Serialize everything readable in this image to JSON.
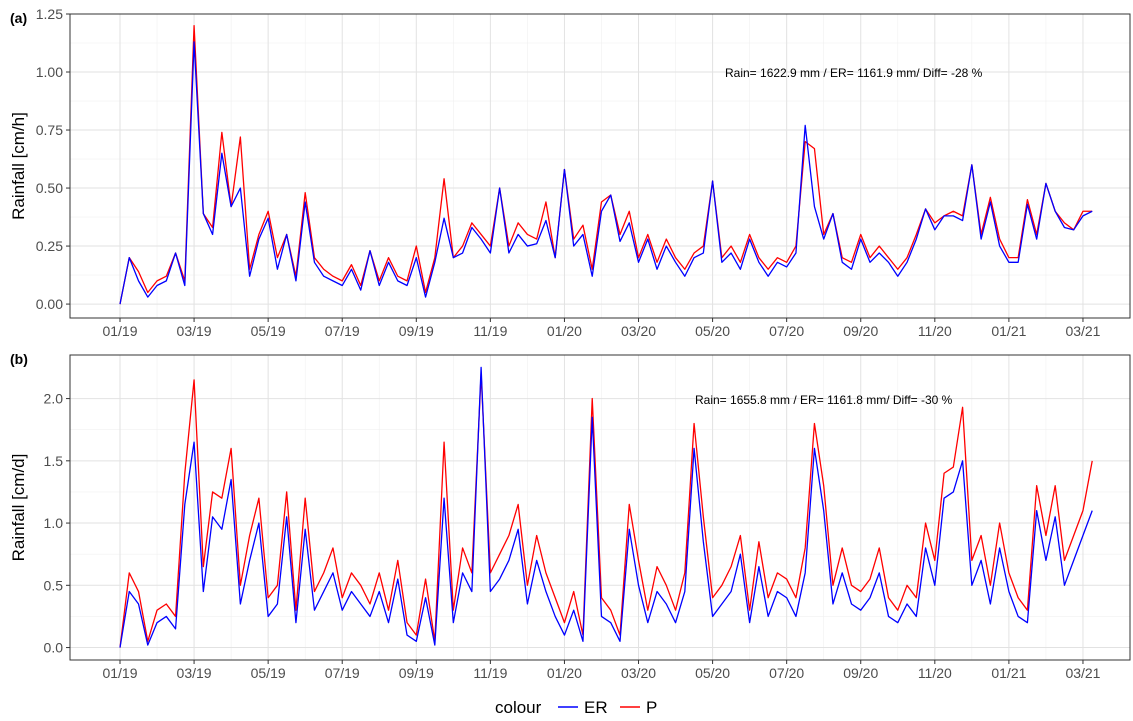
{
  "chart_data": [
    {
      "type": "line",
      "label": "(a)",
      "ylabel": "Rainfall [cm/h]",
      "annotation": "Rain= 1622.9 mm / ER= 1161.9 mm/ Diff= -28 %",
      "x": [
        0,
        0.25,
        0.5,
        0.75,
        1,
        1.25,
        1.5,
        1.75,
        2,
        2.25,
        2.5,
        2.75,
        3,
        3.25,
        3.5,
        3.75,
        4,
        4.25,
        4.5,
        4.75,
        5,
        5.25,
        5.5,
        5.75,
        6,
        6.25,
        6.5,
        6.75,
        7,
        7.25,
        7.5,
        7.75,
        8,
        8.25,
        8.5,
        8.75,
        9,
        9.25,
        9.5,
        9.75,
        10,
        10.25,
        10.5,
        10.75,
        11,
        11.25,
        11.5,
        11.75,
        12,
        12.25,
        12.5,
        12.75,
        13,
        13.25,
        13.5,
        13.75,
        14,
        14.25,
        14.5,
        14.75,
        15,
        15.25,
        15.5,
        15.75,
        16,
        16.25,
        16.5,
        16.75,
        17,
        17.25,
        17.5,
        17.75,
        18,
        18.25,
        18.5,
        18.75,
        19,
        19.25,
        19.5,
        19.75,
        20,
        20.25,
        20.5,
        20.75,
        21,
        21.25,
        21.5,
        21.75,
        22,
        22.25,
        22.5,
        22.75,
        23,
        23.25,
        23.5,
        23.75,
        24,
        24.25,
        24.5,
        24.75,
        25,
        25.25,
        25.5,
        25.75,
        26,
        26.25
      ],
      "series": [
        {
          "name": "ER",
          "color": "#0000ff",
          "values": [
            0,
            0.2,
            0.1,
            0.03,
            0.08,
            0.1,
            0.22,
            0.08,
            1.13,
            0.39,
            0.3,
            0.65,
            0.42,
            0.5,
            0.12,
            0.28,
            0.37,
            0.15,
            0.3,
            0.1,
            0.44,
            0.18,
            0.12,
            0.1,
            0.08,
            0.15,
            0.06,
            0.23,
            0.08,
            0.18,
            0.1,
            0.08,
            0.2,
            0.03,
            0.18,
            0.37,
            0.2,
            0.22,
            0.33,
            0.28,
            0.22,
            0.5,
            0.22,
            0.3,
            0.25,
            0.26,
            0.36,
            0.2,
            0.58,
            0.25,
            0.3,
            0.12,
            0.4,
            0.47,
            0.27,
            0.35,
            0.18,
            0.28,
            0.15,
            0.25,
            0.18,
            0.12,
            0.2,
            0.22,
            0.53,
            0.18,
            0.22,
            0.15,
            0.28,
            0.18,
            0.12,
            0.18,
            0.16,
            0.22,
            0.77,
            0.42,
            0.28,
            0.39,
            0.18,
            0.15,
            0.28,
            0.18,
            0.22,
            0.18,
            0.12,
            0.18,
            0.28,
            0.41,
            0.32,
            0.38,
            0.38,
            0.36,
            0.6,
            0.28,
            0.44,
            0.25,
            0.18,
            0.18,
            0.43,
            0.28,
            0.52,
            0.4,
            0.33,
            0.32,
            0.38,
            0.4
          ]
        },
        {
          "name": "P",
          "color": "#ff0000",
          "values": [
            0,
            0.2,
            0.14,
            0.05,
            0.1,
            0.12,
            0.22,
            0.1,
            1.2,
            0.39,
            0.33,
            0.74,
            0.42,
            0.72,
            0.15,
            0.3,
            0.4,
            0.2,
            0.3,
            0.12,
            0.48,
            0.2,
            0.15,
            0.12,
            0.1,
            0.17,
            0.08,
            0.23,
            0.1,
            0.2,
            0.12,
            0.1,
            0.25,
            0.05,
            0.2,
            0.54,
            0.2,
            0.25,
            0.35,
            0.3,
            0.25,
            0.5,
            0.25,
            0.35,
            0.3,
            0.28,
            0.44,
            0.2,
            0.58,
            0.28,
            0.34,
            0.15,
            0.44,
            0.47,
            0.3,
            0.4,
            0.2,
            0.3,
            0.18,
            0.28,
            0.2,
            0.15,
            0.22,
            0.25,
            0.53,
            0.2,
            0.25,
            0.18,
            0.3,
            0.2,
            0.15,
            0.2,
            0.18,
            0.25,
            0.7,
            0.67,
            0.3,
            0.39,
            0.2,
            0.18,
            0.3,
            0.2,
            0.25,
            0.2,
            0.15,
            0.2,
            0.3,
            0.41,
            0.35,
            0.38,
            0.4,
            0.38,
            0.6,
            0.3,
            0.46,
            0.28,
            0.2,
            0.2,
            0.45,
            0.3,
            0.52,
            0.4,
            0.35,
            0.32,
            0.4,
            0.4
          ]
        }
      ],
      "xlim": [
        -1.35,
        27.27
      ],
      "xticks": [
        {
          "value": 0,
          "label": "01/19"
        },
        {
          "value": 2,
          "label": "03/19"
        },
        {
          "value": 4,
          "label": "05/19"
        },
        {
          "value": 6,
          "label": "07/19"
        },
        {
          "value": 8,
          "label": "09/19"
        },
        {
          "value": 10,
          "label": "11/19"
        },
        {
          "value": 12,
          "label": "01/20"
        },
        {
          "value": 14,
          "label": "03/20"
        },
        {
          "value": 16,
          "label": "05/20"
        },
        {
          "value": 18,
          "label": "07/20"
        },
        {
          "value": 20,
          "label": "09/20"
        },
        {
          "value": 22,
          "label": "11/20"
        },
        {
          "value": 24,
          "label": "01/21"
        },
        {
          "value": 26,
          "label": "03/21"
        }
      ],
      "ylim": [
        -0.06,
        1.25
      ],
      "yticks": [
        {
          "value": 0,
          "label": "0.00"
        },
        0.25,
        {
          "value": 0.5,
          "label": "0.50"
        },
        0.75,
        {
          "value": 1,
          "label": "1.00"
        },
        1.25
      ],
      "grid": true
    },
    {
      "type": "line",
      "label": "(b)",
      "ylabel": "Rainfall [cm/d]",
      "annotation": "Rain= 1655.8 mm / ER= 1161.8 mm/ Diff= -30 %",
      "legend_title": "colour",
      "legend": "bottom",
      "x": [
        0,
        0.25,
        0.5,
        0.75,
        1,
        1.25,
        1.5,
        1.75,
        2,
        2.25,
        2.5,
        2.75,
        3,
        3.25,
        3.5,
        3.75,
        4,
        4.25,
        4.5,
        4.75,
        5,
        5.25,
        5.5,
        5.75,
        6,
        6.25,
        6.5,
        6.75,
        7,
        7.25,
        7.5,
        7.75,
        8,
        8.25,
        8.5,
        8.75,
        9,
        9.25,
        9.5,
        9.75,
        10,
        10.25,
        10.5,
        10.75,
        11,
        11.25,
        11.5,
        11.75,
        12,
        12.25,
        12.5,
        12.75,
        13,
        13.25,
        13.5,
        13.75,
        14,
        14.25,
        14.5,
        14.75,
        15,
        15.25,
        15.5,
        15.75,
        16,
        16.25,
        16.5,
        16.75,
        17,
        17.25,
        17.5,
        17.75,
        18,
        18.25,
        18.5,
        18.75,
        19,
        19.25,
        19.5,
        19.75,
        20,
        20.25,
        20.5,
        20.75,
        21,
        21.25,
        21.5,
        21.75,
        22,
        22.25,
        22.5,
        22.75,
        23,
        23.25,
        23.5,
        23.75,
        24,
        24.25,
        24.5,
        24.75,
        25,
        25.25,
        25.5,
        25.75,
        26,
        26.25
      ],
      "series": [
        {
          "name": "ER",
          "color": "#0000ff",
          "values": [
            0,
            0.45,
            0.35,
            0.02,
            0.2,
            0.25,
            0.15,
            1.15,
            1.65,
            0.45,
            1.05,
            0.95,
            1.35,
            0.35,
            0.7,
            1.0,
            0.25,
            0.35,
            1.05,
            0.2,
            0.95,
            0.3,
            0.45,
            0.6,
            0.3,
            0.45,
            0.35,
            0.25,
            0.45,
            0.2,
            0.55,
            0.1,
            0.05,
            0.4,
            0.02,
            1.2,
            0.2,
            0.6,
            0.45,
            2.25,
            0.45,
            0.55,
            0.7,
            0.95,
            0.35,
            0.7,
            0.45,
            0.25,
            0.1,
            0.3,
            0.05,
            1.85,
            0.25,
            0.2,
            0.05,
            0.95,
            0.5,
            0.2,
            0.45,
            0.35,
            0.2,
            0.45,
            1.6,
            0.85,
            0.25,
            0.35,
            0.45,
            0.75,
            0.2,
            0.65,
            0.25,
            0.45,
            0.4,
            0.25,
            0.6,
            1.6,
            1.1,
            0.35,
            0.6,
            0.35,
            0.3,
            0.4,
            0.6,
            0.25,
            0.2,
            0.35,
            0.25,
            0.8,
            0.5,
            1.2,
            1.25,
            1.5,
            0.5,
            0.7,
            0.35,
            0.8,
            0.45,
            0.25,
            0.2,
            1.1,
            0.7,
            1.05,
            0.5,
            0.7,
            0.9,
            1.1
          ]
        },
        {
          "name": "P",
          "color": "#ff0000",
          "values": [
            0,
            0.6,
            0.45,
            0.05,
            0.3,
            0.35,
            0.25,
            1.4,
            2.15,
            0.65,
            1.25,
            1.2,
            1.6,
            0.5,
            0.9,
            1.2,
            0.4,
            0.5,
            1.25,
            0.3,
            1.2,
            0.45,
            0.6,
            0.8,
            0.4,
            0.6,
            0.5,
            0.35,
            0.6,
            0.3,
            0.7,
            0.2,
            0.1,
            0.55,
            0.05,
            1.65,
            0.3,
            0.8,
            0.6,
            2.2,
            0.6,
            0.75,
            0.9,
            1.15,
            0.5,
            0.9,
            0.6,
            0.4,
            0.2,
            0.45,
            0.1,
            2.0,
            0.4,
            0.3,
            0.1,
            1.15,
            0.7,
            0.3,
            0.65,
            0.5,
            0.3,
            0.6,
            1.8,
            1.05,
            0.4,
            0.5,
            0.65,
            0.9,
            0.3,
            0.85,
            0.4,
            0.6,
            0.55,
            0.4,
            0.8,
            1.8,
            1.3,
            0.5,
            0.8,
            0.5,
            0.45,
            0.55,
            0.8,
            0.4,
            0.3,
            0.5,
            0.4,
            1.0,
            0.7,
            1.4,
            1.45,
            1.93,
            0.7,
            0.9,
            0.5,
            1.0,
            0.6,
            0.4,
            0.3,
            1.3,
            0.9,
            1.3,
            0.7,
            0.9,
            1.1,
            1.5
          ]
        }
      ],
      "xlim": [
        -1.35,
        27.27
      ],
      "xticks": [
        {
          "value": 0,
          "label": "01/19"
        },
        {
          "value": 2,
          "label": "03/19"
        },
        {
          "value": 4,
          "label": "05/19"
        },
        {
          "value": 6,
          "label": "07/19"
        },
        {
          "value": 8,
          "label": "09/19"
        },
        {
          "value": 10,
          "label": "11/19"
        },
        {
          "value": 12,
          "label": "01/20"
        },
        {
          "value": 14,
          "label": "03/20"
        },
        {
          "value": 16,
          "label": "05/20"
        },
        {
          "value": 18,
          "label": "07/20"
        },
        {
          "value": 20,
          "label": "09/20"
        },
        {
          "value": 22,
          "label": "11/20"
        },
        {
          "value": 24,
          "label": "01/21"
        },
        {
          "value": 26,
          "label": "03/21"
        }
      ],
      "ylim": [
        -0.1,
        2.35
      ],
      "yticks": [
        {
          "value": 0,
          "label": "0.0"
        },
        0.5,
        {
          "value": 1,
          "label": "1.0"
        },
        1.5,
        {
          "value": 2,
          "label": "2.0"
        }
      ],
      "grid": true
    }
  ]
}
